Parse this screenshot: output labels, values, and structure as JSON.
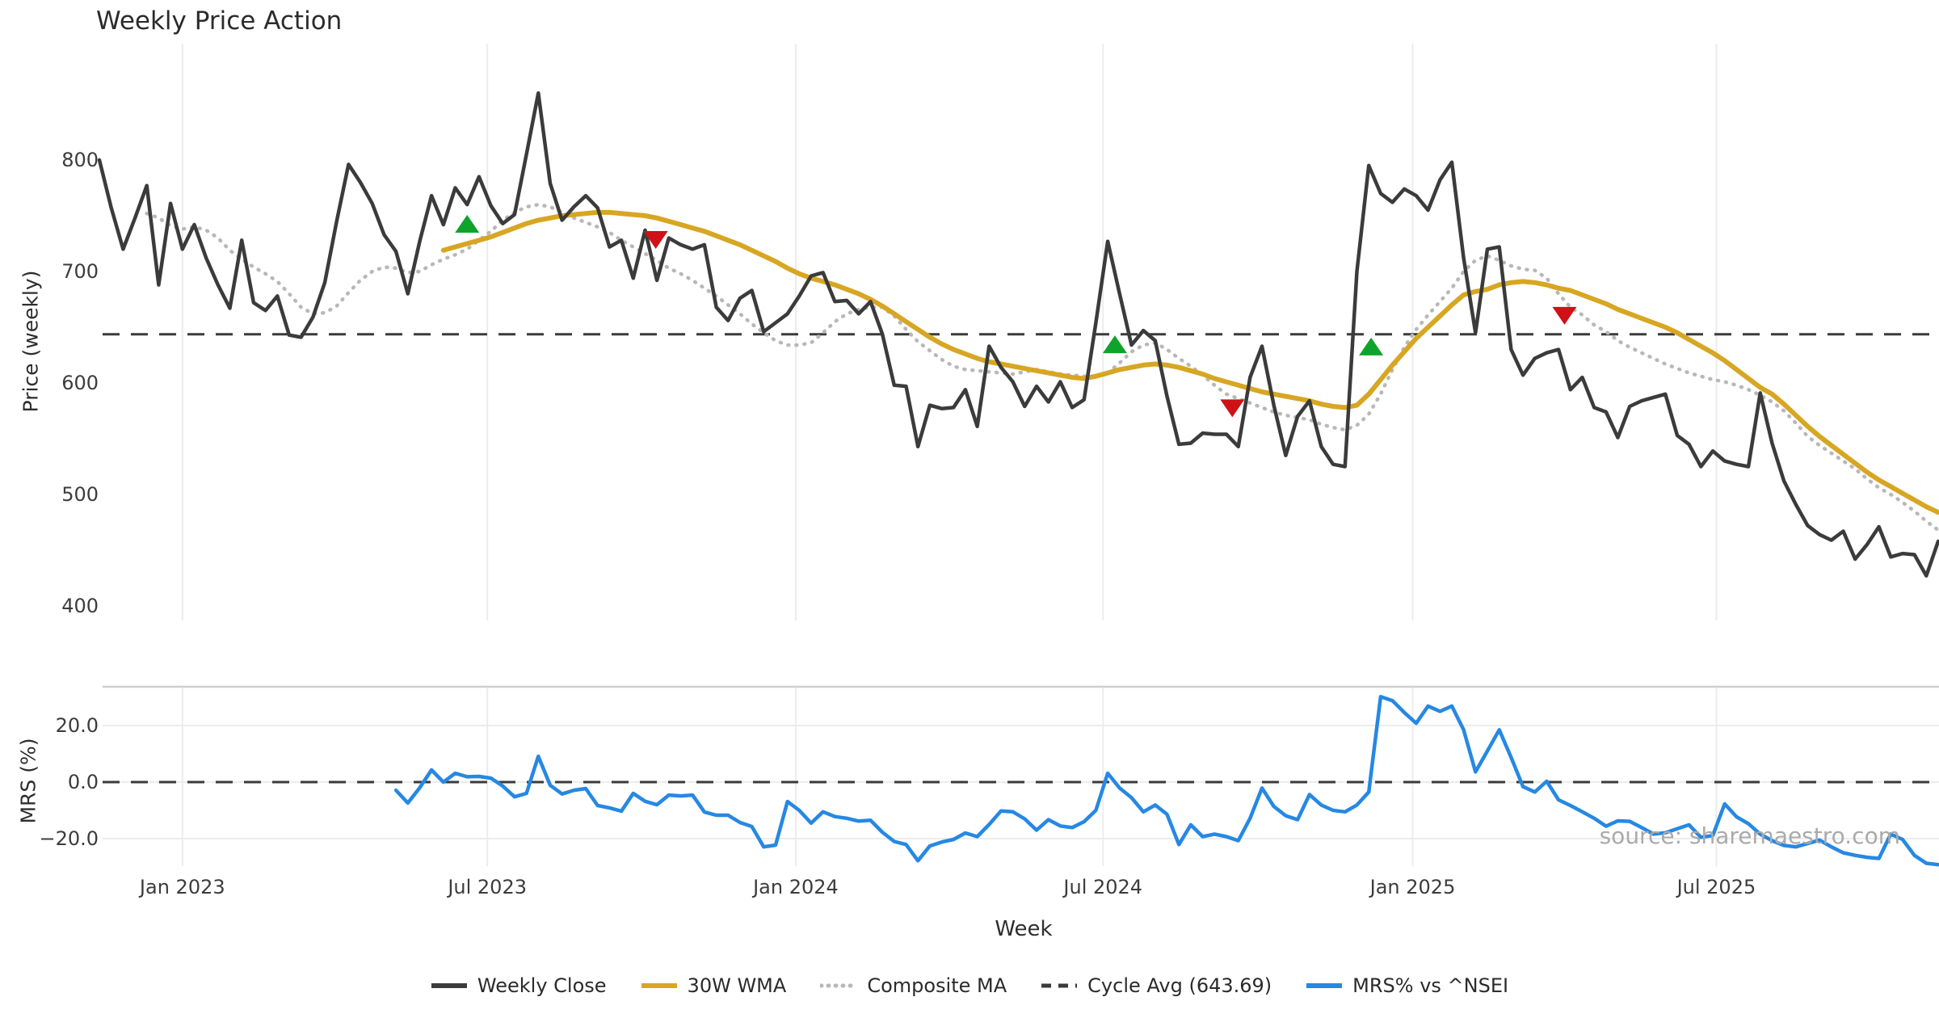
{
  "title": "Weekly Price Action",
  "watermark": "source: sharemaestro.com",
  "axes": {
    "price_label": "Price (weekly)",
    "mrs_label": "MRS (%)",
    "x_label": "Week",
    "price_ticks": [
      800,
      700,
      600,
      500,
      400
    ],
    "mrs_ticks": [
      "20.0",
      "0.0",
      "−20.0"
    ],
    "mrs_tick_values": [
      20,
      0,
      -20
    ],
    "x_ticks": [
      {
        "week": 7.0,
        "label": "Jan 2023"
      },
      {
        "week": 32.7,
        "label": "Jul 2023"
      },
      {
        "week": 58.7,
        "label": "Jan 2024"
      },
      {
        "week": 84.6,
        "label": "Jul 2024"
      },
      {
        "week": 110.7,
        "label": "Jan 2025"
      },
      {
        "week": 136.3,
        "label": "Jul 2025"
      }
    ]
  },
  "colors": {
    "close": "#3b3b3b",
    "wma": "#d7a622",
    "composite": "#b8b8b8",
    "cycle": "#3a3a3a",
    "mrs": "#2688e3",
    "buy": "#0fa32b",
    "sell": "#ce1216",
    "grid": "#ececec",
    "spine": "#cfcfcf"
  },
  "legend": [
    {
      "label": "Weekly Close",
      "style": "solid",
      "color": "#3b3b3b"
    },
    {
      "label": "30W WMA",
      "style": "solid",
      "color": "#d7a622"
    },
    {
      "label": "Composite MA",
      "style": "dotted",
      "color": "#b8b8b8"
    },
    {
      "label": "Cycle Avg (643.69)",
      "style": "dashed",
      "color": "#3a3a3a"
    },
    {
      "label": "MRS% vs ^NSEI",
      "style": "solid",
      "color": "#2688e3"
    }
  ],
  "chart_data": {
    "type": "line",
    "title": "Weekly Price Action",
    "xlabel": "Week",
    "x_unit": "week_index",
    "n_weeks": 156,
    "panels": [
      {
        "name": "price",
        "ylabel": "Price (weekly)",
        "ylim": [
          387,
          904
        ],
        "yticks": [
          800,
          700,
          600,
          500,
          400
        ],
        "grid": "vertical"
      },
      {
        "name": "mrs",
        "ylabel": "MRS (%)",
        "ylim": [
          -33.7,
          33.7
        ],
        "yticks": [
          20,
          0,
          -20
        ],
        "grid": "both"
      }
    ],
    "cycle_avg": 643.69,
    "mrs_zero_line": 0.0,
    "series": [
      {
        "name": "Weekly Close",
        "panel": "price",
        "start_week": 0,
        "values": [
          800,
          757,
          720,
          748,
          777,
          688,
          761,
          720,
          742,
          712,
          688,
          667,
          728,
          672,
          665,
          678,
          643,
          641,
          659,
          690,
          745,
          796,
          780,
          761,
          733,
          718,
          680,
          727,
          768,
          742,
          775,
          760,
          785,
          759,
          743,
          751,
          805,
          860,
          779,
          746,
          758,
          768,
          757,
          722,
          728,
          694,
          737,
          692,
          730,
          724,
          720,
          724,
          668,
          656,
          676,
          683,
          646,
          654,
          662,
          678,
          696,
          699,
          673,
          674,
          662,
          673,
          644,
          598,
          597,
          543,
          580,
          577,
          578,
          594,
          561,
          633,
          614,
          601,
          579,
          597,
          583,
          601,
          578,
          585,
          654,
          727,
          680,
          634,
          647,
          638,
          588,
          545,
          546,
          555,
          554,
          554,
          543,
          605,
          633,
          580,
          535,
          570,
          584,
          543,
          527,
          525,
          700,
          795,
          770,
          762,
          774,
          768,
          755,
          782,
          798,
          712,
          645,
          720,
          722,
          630,
          607,
          622,
          627,
          630,
          594,
          605,
          578,
          574,
          551,
          579,
          584,
          587,
          590,
          553,
          545,
          525,
          539,
          530,
          527,
          525,
          591,
          546,
          512,
          491,
          472,
          464,
          459,
          467,
          442,
          455,
          471,
          444,
          447,
          446,
          427,
          458
        ]
      },
      {
        "name": "30W WMA",
        "panel": "price",
        "start_week": 29,
        "values": [
          719,
          722,
          725,
          728,
          731,
          735,
          739,
          743,
          746,
          748,
          750,
          751,
          752,
          753,
          753,
          752,
          751,
          750,
          748,
          745,
          742,
          739,
          736,
          732,
          728,
          724,
          719,
          714,
          709,
          703,
          698,
          694,
          691,
          688,
          684,
          680,
          675,
          669,
          662,
          655,
          648,
          641,
          635,
          630,
          626,
          622,
          619,
          617,
          615,
          613,
          611,
          609,
          607,
          605,
          604,
          606,
          609,
          612,
          614,
          616,
          617,
          616,
          614,
          611,
          608,
          604,
          601,
          598,
          595,
          592,
          590,
          588,
          586,
          584,
          581,
          579,
          578,
          580,
          590,
          603,
          616,
          628,
          640,
          650,
          660,
          670,
          679,
          682,
          684,
          688,
          690,
          691,
          690,
          688,
          685,
          683,
          679,
          675,
          671,
          666,
          662,
          658,
          654,
          650,
          645,
          639,
          633,
          627,
          620,
          612,
          604,
          596,
          590,
          581,
          571,
          561,
          552,
          544,
          536,
          528,
          520,
          513,
          507,
          501,
          495,
          489,
          484
        ]
      },
      {
        "name": "Composite MA",
        "panel": "price",
        "start_week": 4,
        "values": [
          752,
          748,
          741,
          738,
          740,
          737,
          730,
          719,
          711,
          704,
          698,
          691,
          680,
          668,
          662,
          663,
          669,
          681,
          692,
          700,
          704,
          703,
          699,
          700,
          706,
          711,
          715,
          720,
          728,
          736,
          746,
          753,
          758,
          760,
          758,
          753,
          748,
          744,
          740,
          735,
          728,
          722,
          716,
          710,
          703,
          698,
          692,
          685,
          678,
          670,
          662,
          653,
          645,
          638,
          634,
          634,
          636,
          645,
          655,
          662,
          666,
          668,
          668,
          660,
          648,
          637,
          629,
          621,
          615,
          612,
          611,
          610,
          609,
          608,
          610,
          612,
          610,
          608,
          607,
          606,
          606,
          609,
          618,
          628,
          634,
          636,
          630,
          622,
          615,
          607,
          598,
          590,
          586,
          582,
          578,
          574,
          571,
          569,
          567,
          563,
          560,
          558,
          562,
          572,
          590,
          612,
          632,
          648,
          661,
          673,
          685,
          700,
          710,
          714,
          710,
          705,
          702,
          701,
          694,
          680,
          668,
          661,
          652,
          646,
          638,
          632,
          627,
          622,
          617,
          613,
          609,
          606,
          603,
          601,
          598,
          594,
          589,
          583,
          575,
          564,
          552,
          544,
          537,
          530,
          523,
          514,
          506,
          500,
          493,
          485,
          476,
          468
        ]
      },
      {
        "name": "MRS% vs ^NSEI",
        "panel": "mrs",
        "start_week": 25,
        "values": [
          -2.9,
          -7.4,
          -2.0,
          4.3,
          0.0,
          3.1,
          1.9,
          2.0,
          1.4,
          -1.4,
          -5.2,
          -4.0,
          9.1,
          -1.1,
          -4.2,
          -2.9,
          -2.3,
          -8.3,
          -9.1,
          -10.3,
          -4.0,
          -6.8,
          -8.0,
          -4.6,
          -4.9,
          -4.6,
          -10.6,
          -11.7,
          -11.7,
          -14.3,
          -15.7,
          -22.9,
          -22.3,
          -6.9,
          -10.0,
          -14.5,
          -10.5,
          -12.2,
          -12.8,
          -13.8,
          -13.5,
          -17.7,
          -21.0,
          -22.1,
          -27.8,
          -22.6,
          -21.2,
          -20.3,
          -18.0,
          -19.3,
          -15.0,
          -10.2,
          -10.5,
          -13.0,
          -17.0,
          -13.3,
          -15.5,
          -16.1,
          -14.0,
          -10.0,
          3.1,
          -2.1,
          -5.5,
          -10.5,
          -8.1,
          -11.4,
          -22.1,
          -15.1,
          -19.3,
          -18.4,
          -19.3,
          -20.7,
          -12.8,
          -2.1,
          -8.6,
          -11.9,
          -13.3,
          -4.4,
          -8.1,
          -10.0,
          -10.5,
          -8.1,
          -3.5,
          30.2,
          28.8,
          24.6,
          20.8,
          26.9,
          25.0,
          26.9,
          18.5,
          3.6,
          11.0,
          18.5,
          8.7,
          -1.6,
          -3.5,
          0.3,
          -6.3,
          -8.3,
          -10.5,
          -12.8,
          -15.6,
          -13.7,
          -13.9,
          -16.1,
          -18.4,
          -17.9,
          -16.5,
          -15.1,
          -19.5,
          -18.9,
          -7.7,
          -12.3,
          -14.7,
          -18.4,
          -20.7,
          -22.4,
          -22.9,
          -21.7,
          -20.5,
          -22.9,
          -25.0,
          -25.9,
          -26.6,
          -27.0,
          -18.4,
          -20.3,
          -25.9,
          -28.7,
          -29.2
        ]
      },
      {
        "name": "buy-markers",
        "panel": "price",
        "marker": "triangle-up",
        "points": [
          [
            31.0,
            742
          ],
          [
            85.6,
            634
          ],
          [
            107.2,
            632
          ]
        ]
      },
      {
        "name": "sell-markers",
        "panel": "price",
        "marker": "triangle-down",
        "points": [
          [
            46.9,
            729
          ],
          [
            95.5,
            578
          ],
          [
            123.5,
            661
          ]
        ]
      }
    ],
    "legend_entries": [
      "Weekly Close",
      "30W WMA",
      "Composite MA",
      "Cycle Avg (643.69)",
      "MRS% vs ^NSEI"
    ],
    "legend_position": "bottom-center",
    "annotations": [
      {
        "text": "source: sharemaestro.com",
        "position": "bottom-right"
      }
    ]
  }
}
